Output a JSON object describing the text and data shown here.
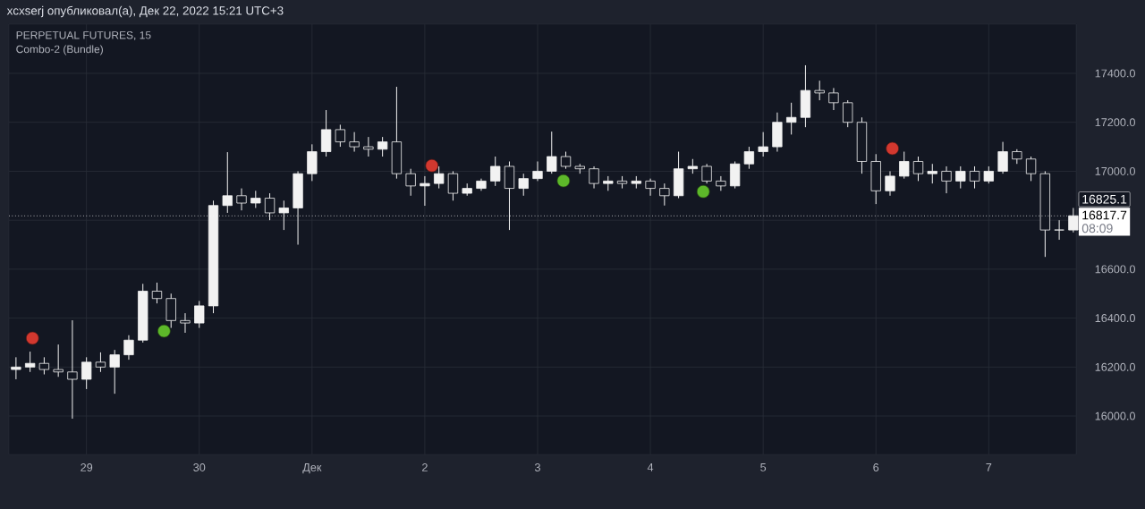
{
  "chart_data": {
    "type": "candlestick",
    "title": "PERPETUAL FUTURES, 15",
    "subtitle": "Combo-2 (Bundle)",
    "annotations": [
      "xcxserj опубликовал(а), Дек 22, 2022 15:21 UTC+3",
      "08:09",
      "16825.1"
    ],
    "xlim": [
      "2022-11-28T07:30",
      "2022-12-07T18:36"
    ],
    "ylim": [
      15843,
      17601
    ],
    "xticks": [
      {
        "value": "2022-11-29",
        "label": "29"
      },
      {
        "value": "2022-11-30",
        "label": "30"
      },
      {
        "value": "2022-12-01",
        "label": "Дек"
      },
      {
        "value": "2022-12-02",
        "label": "2"
      },
      {
        "value": "2022-12-03",
        "label": "3"
      },
      {
        "value": "2022-12-04",
        "label": "4"
      },
      {
        "value": "2022-12-05",
        "label": "5"
      },
      {
        "value": "2022-12-06",
        "label": "6"
      },
      {
        "value": "2022-12-07",
        "label": "7"
      }
    ],
    "yticks": [
      {
        "value": 16000,
        "label": "16000.0"
      },
      {
        "value": 16200,
        "label": "16200.0"
      },
      {
        "value": 16400,
        "label": "16400.0"
      },
      {
        "value": 16600,
        "label": "16600.0"
      },
      {
        "value": 16800,
        "label": null
      },
      {
        "value": 17000,
        "label": "17000.0"
      },
      {
        "value": 17200,
        "label": "17200.0"
      },
      {
        "value": 17400,
        "label": "17400.0"
      }
    ],
    "grid": true,
    "ref_lines": [
      {
        "axis": "y",
        "value": 16817.7,
        "label": "16817.7",
        "line_style": "dotted",
        "color": "#ffffff"
      }
    ],
    "series": [
      {
        "color": "#f2f2f2",
        "x": [
          "2022-11-28T09:00",
          "2022-11-28T12:00",
          "2022-11-28T15:00",
          "2022-11-28T18:00",
          "2022-11-28T21:00",
          "2022-11-29T00:00",
          "2022-11-29T03:00",
          "2022-11-29T06:00",
          "2022-11-29T09:00",
          "2022-11-29T12:00",
          "2022-11-29T15:00",
          "2022-11-29T18:00",
          "2022-11-29T21:00",
          "2022-11-30T00:00",
          "2022-11-30T03:00",
          "2022-11-30T06:00",
          "2022-11-30T09:00",
          "2022-11-30T12:00",
          "2022-11-30T15:00",
          "2022-11-30T18:00",
          "2022-11-30T21:00",
          "2022-12-01T00:00",
          "2022-12-01T03:00",
          "2022-12-01T06:00",
          "2022-12-01T09:00",
          "2022-12-01T12:00",
          "2022-12-01T15:00",
          "2022-12-01T18:00",
          "2022-12-01T21:00",
          "2022-12-02T00:00",
          "2022-12-02T03:00",
          "2022-12-02T06:00",
          "2022-12-02T09:00",
          "2022-12-02T12:00",
          "2022-12-02T15:00",
          "2022-12-02T18:00",
          "2022-12-02T21:00",
          "2022-12-03T00:00",
          "2022-12-03T03:00",
          "2022-12-03T06:00",
          "2022-12-03T09:00",
          "2022-12-03T12:00",
          "2022-12-03T15:00",
          "2022-12-03T18:00",
          "2022-12-03T21:00",
          "2022-12-04T00:00",
          "2022-12-04T03:00",
          "2022-12-04T06:00",
          "2022-12-04T09:00",
          "2022-12-04T12:00",
          "2022-12-04T15:00",
          "2022-12-04T18:00",
          "2022-12-04T21:00",
          "2022-12-05T00:00",
          "2022-12-05T03:00",
          "2022-12-05T06:00",
          "2022-12-05T09:00",
          "2022-12-05T12:00",
          "2022-12-05T15:00",
          "2022-12-05T18:00",
          "2022-12-05T21:00",
          "2022-12-06T00:00",
          "2022-12-06T03:00",
          "2022-12-06T06:00",
          "2022-12-06T09:00",
          "2022-12-06T12:00",
          "2022-12-06T15:00",
          "2022-12-06T18:00",
          "2022-12-06T21:00",
          "2022-12-07T00:00",
          "2022-12-07T03:00",
          "2022-12-07T06:00",
          "2022-12-07T09:00",
          "2022-12-07T12:00",
          "2022-12-07T15:00",
          "2022-12-07T18:00"
        ],
        "ohlc": [
          [
            16190,
            16240,
            16150,
            16200
          ],
          [
            16200,
            16263,
            16180,
            16215
          ],
          [
            16215,
            16240,
            16170,
            16190
          ],
          [
            16190,
            16292,
            16160,
            16180
          ],
          [
            16180,
            16391,
            15989,
            16150
          ],
          [
            16150,
            16240,
            16110,
            16220
          ],
          [
            16220,
            16260,
            16180,
            16200
          ],
          [
            16200,
            16270,
            16091,
            16250
          ],
          [
            16250,
            16330,
            16230,
            16310
          ],
          [
            16310,
            16540,
            16300,
            16510
          ],
          [
            16510,
            16545,
            16460,
            16480
          ],
          [
            16480,
            16500,
            16360,
            16390
          ],
          [
            16390,
            16420,
            16340,
            16380
          ],
          [
            16380,
            16470,
            16360,
            16450
          ],
          [
            16450,
            16880,
            16420,
            16860
          ],
          [
            16860,
            17078,
            16830,
            16900
          ],
          [
            16900,
            16930,
            16840,
            16870
          ],
          [
            16870,
            16920,
            16850,
            16890
          ],
          [
            16890,
            16910,
            16800,
            16830
          ],
          [
            16830,
            16880,
            16760,
            16850
          ],
          [
            16850,
            17000,
            16700,
            16990
          ],
          [
            16990,
            17110,
            16960,
            17080
          ],
          [
            17080,
            17250,
            17060,
            17170
          ],
          [
            17170,
            17190,
            17100,
            17120
          ],
          [
            17120,
            17160,
            17080,
            17100
          ],
          [
            17100,
            17140,
            17060,
            17090
          ],
          [
            17090,
            17140,
            17060,
            17120
          ],
          [
            17120,
            17345,
            16970,
            16990
          ],
          [
            16990,
            17010,
            16900,
            16940
          ],
          [
            16940,
            16980,
            16859,
            16950
          ],
          [
            16950,
            17020,
            16930,
            16990
          ],
          [
            16990,
            17000,
            16880,
            16910
          ],
          [
            16910,
            16950,
            16900,
            16930
          ],
          [
            16930,
            16970,
            16920,
            16960
          ],
          [
            16960,
            17060,
            16940,
            17020
          ],
          [
            17020,
            17040,
            16760,
            16930
          ],
          [
            16930,
            16990,
            16900,
            16970
          ],
          [
            16970,
            17040,
            16960,
            17000
          ],
          [
            17000,
            17162,
            16990,
            17060
          ],
          [
            17060,
            17080,
            17010,
            17020
          ],
          [
            17020,
            17030,
            16990,
            17010
          ],
          [
            17010,
            17020,
            16930,
            16950
          ],
          [
            16950,
            16980,
            16920,
            16960
          ],
          [
            16960,
            16980,
            16930,
            16950
          ],
          [
            16950,
            16980,
            16930,
            16960
          ],
          [
            16960,
            16970,
            16900,
            16930
          ],
          [
            16930,
            16950,
            16860,
            16900
          ],
          [
            16900,
            17080,
            16890,
            17010
          ],
          [
            17010,
            17050,
            16990,
            17020
          ],
          [
            17020,
            17030,
            16950,
            16960
          ],
          [
            16960,
            16980,
            16920,
            16940
          ],
          [
            16940,
            17040,
            16930,
            17030
          ],
          [
            17030,
            17100,
            17010,
            17080
          ],
          [
            17080,
            17160,
            17060,
            17100
          ],
          [
            17100,
            17240,
            17080,
            17200
          ],
          [
            17200,
            17280,
            17150,
            17220
          ],
          [
            17220,
            17433,
            17180,
            17330
          ],
          [
            17330,
            17370,
            17290,
            17320
          ],
          [
            17320,
            17340,
            17250,
            17280
          ],
          [
            17280,
            17290,
            17180,
            17200
          ],
          [
            17200,
            17220,
            16990,
            17040
          ],
          [
            17040,
            17070,
            16866,
            16920
          ],
          [
            16920,
            17000,
            16900,
            16980
          ],
          [
            16980,
            17080,
            16970,
            17040
          ],
          [
            17040,
            17060,
            16960,
            16990
          ],
          [
            16990,
            17030,
            16950,
            17000
          ],
          [
            17000,
            17020,
            16910,
            16960
          ],
          [
            16960,
            17020,
            16930,
            17000
          ],
          [
            17000,
            17020,
            16930,
            16960
          ],
          [
            16960,
            17020,
            16950,
            17000
          ],
          [
            17000,
            17120,
            16990,
            17080
          ],
          [
            17080,
            17090,
            17030,
            17050
          ],
          [
            17050,
            17060,
            16960,
            16990
          ],
          [
            16990,
            17000,
            16650,
            16760
          ],
          [
            16760,
            16800,
            16720,
            16760
          ],
          [
            16760,
            16850,
            16750,
            16818
          ]
        ]
      },
      {
        "type": "scatter",
        "color": "#d2382f",
        "marker": "circle",
        "x": [
          "2022-11-28T12:30",
          "2022-12-02T01:30",
          "2022-12-06T03:30"
        ],
        "values": [
          16318,
          17023,
          17093
        ]
      },
      {
        "type": "scatter",
        "color": "#5db82a",
        "marker": "circle",
        "x": [
          "2022-11-29T16:30",
          "2022-12-03T05:30",
          "2022-12-04T11:15"
        ],
        "values": [
          16347,
          16961,
          16917
        ]
      }
    ]
  }
}
